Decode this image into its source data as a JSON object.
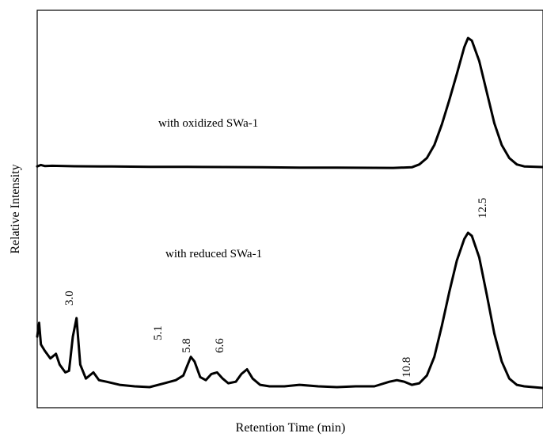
{
  "chart_data": {
    "type": "line",
    "title": "",
    "xlabel": "Retention Time (min)",
    "ylabel": "Relative Intensity",
    "x_ticks_shown": false,
    "y_ticks_shown": false,
    "grid": false,
    "xlim": [
      1.0,
      14.5
    ],
    "series": [
      {
        "name": "with oxidized SWa-1",
        "x": [
          1.0,
          1.1,
          1.2,
          1.4,
          2.0,
          3.0,
          4.0,
          5.0,
          6.0,
          7.0,
          8.0,
          9.0,
          10.0,
          10.5,
          11.0,
          11.2,
          11.4,
          11.6,
          11.8,
          12.0,
          12.2,
          12.4,
          12.5,
          12.6,
          12.8,
          13.0,
          13.2,
          13.4,
          13.6,
          13.8,
          14.0,
          14.5
        ],
        "values": [
          0.005,
          0.016,
          0.008,
          0.01,
          0.006,
          0.004,
          0.002,
          0.001,
          0.0,
          -0.002,
          -0.004,
          -0.005,
          -0.006,
          -0.007,
          -0.002,
          0.02,
          0.07,
          0.17,
          0.33,
          0.52,
          0.72,
          0.93,
          1.0,
          0.98,
          0.82,
          0.58,
          0.34,
          0.17,
          0.07,
          0.02,
          0.005,
          0.0
        ]
      },
      {
        "name": "with reduced SWa-1",
        "x": [
          1.0,
          1.05,
          1.1,
          1.2,
          1.35,
          1.5,
          1.6,
          1.75,
          1.85,
          1.95,
          2.05,
          2.15,
          2.3,
          2.5,
          2.65,
          2.85,
          3.2,
          3.6,
          4.0,
          4.4,
          4.7,
          4.9,
          5.0,
          5.1,
          5.2,
          5.35,
          5.5,
          5.65,
          5.8,
          5.95,
          6.1,
          6.3,
          6.45,
          6.6,
          6.75,
          6.95,
          7.2,
          7.6,
          8.0,
          8.5,
          9.0,
          9.5,
          10.0,
          10.4,
          10.6,
          10.8,
          11.0,
          11.2,
          11.4,
          11.6,
          11.8,
          12.0,
          12.2,
          12.4,
          12.5,
          12.6,
          12.8,
          13.0,
          13.2,
          13.4,
          13.6,
          13.8,
          14.0,
          14.5
        ],
        "values": [
          0.33,
          0.42,
          0.28,
          0.24,
          0.19,
          0.22,
          0.15,
          0.1,
          0.11,
          0.33,
          0.45,
          0.15,
          0.06,
          0.1,
          0.05,
          0.04,
          0.02,
          0.01,
          0.005,
          0.03,
          0.05,
          0.08,
          0.14,
          0.2,
          0.17,
          0.07,
          0.05,
          0.09,
          0.1,
          0.06,
          0.03,
          0.04,
          0.09,
          0.12,
          0.06,
          0.02,
          0.01,
          0.01,
          0.02,
          0.01,
          0.005,
          0.01,
          0.01,
          0.04,
          0.05,
          0.04,
          0.02,
          0.03,
          0.08,
          0.2,
          0.4,
          0.62,
          0.82,
          0.96,
          1.0,
          0.98,
          0.84,
          0.6,
          0.35,
          0.17,
          0.06,
          0.02,
          0.01,
          0.0
        ]
      }
    ],
    "annotations": [
      "3.0",
      "5.1",
      "5.8",
      "6.6",
      "10.8",
      "12.5"
    ],
    "legend": "none"
  }
}
